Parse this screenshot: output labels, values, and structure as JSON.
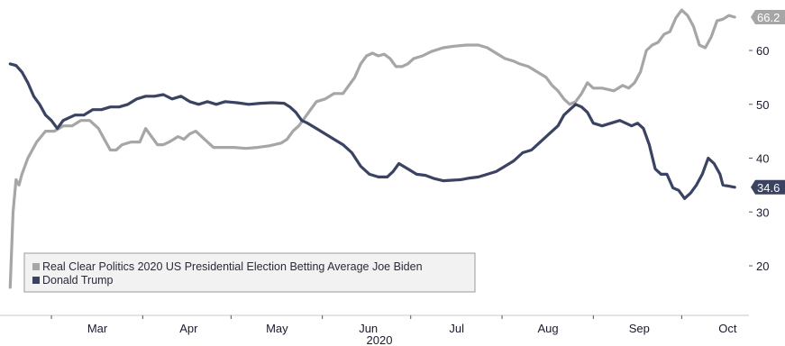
{
  "chart_data": {
    "type": "line",
    "year_label": "2020",
    "x_tick_labels": [
      {
        "label": "Mar",
        "date": "2020-03-01"
      },
      {
        "label": "Apr",
        "date": "2020-04-01"
      },
      {
        "label": "May",
        "date": "2020-05-01"
      },
      {
        "label": "Jun",
        "date": "2020-06-01"
      },
      {
        "label": "Jul",
        "date": "2020-07-01"
      },
      {
        "label": "Aug",
        "date": "2020-08-01"
      },
      {
        "label": "Sep",
        "date": "2020-09-01"
      },
      {
        "label": "Oct",
        "date": "2020-10-01"
      }
    ],
    "y_ticks": [
      20,
      30,
      40,
      50,
      60
    ],
    "ylim": [
      11,
      70
    ],
    "y_axis_position": "right",
    "grid": false,
    "legend_position": "bottom-left",
    "series": [
      {
        "name": "Real Clear Politics 2020 US Presidential Election Betting Average Joe Biden",
        "color": "#a6a6a6",
        "end_label": "66.2",
        "points": [
          [
            "2020-02-16",
            16
          ],
          [
            "2020-02-17",
            30
          ],
          [
            "2020-02-18",
            36
          ],
          [
            "2020-02-19",
            35
          ],
          [
            "2020-02-20",
            37
          ],
          [
            "2020-02-22",
            40
          ],
          [
            "2020-02-25",
            43
          ],
          [
            "2020-02-28",
            45
          ],
          [
            "2020-03-02",
            45
          ],
          [
            "2020-03-05",
            46
          ],
          [
            "2020-03-08",
            46
          ],
          [
            "2020-03-11",
            47
          ],
          [
            "2020-03-14",
            47
          ],
          [
            "2020-03-17",
            45.5
          ],
          [
            "2020-03-19",
            43.5
          ],
          [
            "2020-03-21",
            41.5
          ],
          [
            "2020-03-23",
            41.5
          ],
          [
            "2020-03-25",
            42.5
          ],
          [
            "2020-03-28",
            43
          ],
          [
            "2020-03-31",
            43
          ],
          [
            "2020-04-02",
            45.5
          ],
          [
            "2020-04-04",
            44
          ],
          [
            "2020-04-06",
            42.5
          ],
          [
            "2020-04-08",
            42.5
          ],
          [
            "2020-04-10",
            43
          ],
          [
            "2020-04-13",
            44
          ],
          [
            "2020-04-15",
            43.5
          ],
          [
            "2020-04-17",
            44.5
          ],
          [
            "2020-04-19",
            45
          ],
          [
            "2020-04-21",
            44
          ],
          [
            "2020-04-23",
            43
          ],
          [
            "2020-04-25",
            42
          ],
          [
            "2020-04-28",
            42
          ],
          [
            "2020-05-02",
            42
          ],
          [
            "2020-05-06",
            41.8
          ],
          [
            "2020-05-10",
            42
          ],
          [
            "2020-05-14",
            42.3
          ],
          [
            "2020-05-18",
            42.8
          ],
          [
            "2020-05-20",
            43.5
          ],
          [
            "2020-05-22",
            45
          ],
          [
            "2020-05-24",
            46
          ],
          [
            "2020-05-26",
            47.5
          ],
          [
            "2020-05-28",
            49
          ],
          [
            "2020-05-30",
            50.5
          ],
          [
            "2020-06-02",
            51
          ],
          [
            "2020-06-05",
            52
          ],
          [
            "2020-06-08",
            52
          ],
          [
            "2020-06-10",
            53.5
          ],
          [
            "2020-06-12",
            55
          ],
          [
            "2020-06-14",
            57.5
          ],
          [
            "2020-06-16",
            59
          ],
          [
            "2020-06-18",
            59.5
          ],
          [
            "2020-06-20",
            59
          ],
          [
            "2020-06-22",
            59.3
          ],
          [
            "2020-06-24",
            58.5
          ],
          [
            "2020-06-26",
            57
          ],
          [
            "2020-06-28",
            57
          ],
          [
            "2020-06-30",
            57.5
          ],
          [
            "2020-07-02",
            58.5
          ],
          [
            "2020-07-05",
            59
          ],
          [
            "2020-07-08",
            59.8
          ],
          [
            "2020-07-12",
            60.5
          ],
          [
            "2020-07-16",
            60.8
          ],
          [
            "2020-07-20",
            61
          ],
          [
            "2020-07-24",
            61
          ],
          [
            "2020-07-27",
            60.5
          ],
          [
            "2020-07-30",
            59.5
          ],
          [
            "2020-08-02",
            58.5
          ],
          [
            "2020-08-05",
            58
          ],
          [
            "2020-08-07",
            57.5
          ],
          [
            "2020-08-10",
            57
          ],
          [
            "2020-08-13",
            56
          ],
          [
            "2020-08-16",
            55
          ],
          [
            "2020-08-18",
            53.5
          ],
          [
            "2020-08-20",
            52.5
          ],
          [
            "2020-08-22",
            51
          ],
          [
            "2020-08-24",
            50
          ],
          [
            "2020-08-26",
            50.5
          ],
          [
            "2020-08-28",
            52
          ],
          [
            "2020-08-30",
            54
          ],
          [
            "2020-09-01",
            53
          ],
          [
            "2020-09-04",
            53
          ],
          [
            "2020-09-08",
            52.5
          ],
          [
            "2020-09-11",
            53.5
          ],
          [
            "2020-09-13",
            53
          ],
          [
            "2020-09-15",
            54
          ],
          [
            "2020-09-17",
            56
          ],
          [
            "2020-09-19",
            60
          ],
          [
            "2020-09-21",
            61
          ],
          [
            "2020-09-23",
            61.5
          ],
          [
            "2020-09-25",
            63
          ],
          [
            "2020-09-27",
            63.5
          ],
          [
            "2020-09-29",
            66
          ],
          [
            "2020-10-01",
            67.5
          ],
          [
            "2020-10-03",
            66.5
          ],
          [
            "2020-10-05",
            64.5
          ],
          [
            "2020-10-07",
            61
          ],
          [
            "2020-10-09",
            60.5
          ],
          [
            "2020-10-11",
            62.5
          ],
          [
            "2020-10-13",
            65.5
          ],
          [
            "2020-10-15",
            65.8
          ],
          [
            "2020-10-17",
            66.5
          ],
          [
            "2020-10-19",
            66.2
          ]
        ]
      },
      {
        "name": "Donald Trump",
        "color": "#3b4362",
        "end_label": "34.6",
        "points": [
          [
            "2020-02-16",
            57.5
          ],
          [
            "2020-02-18",
            57.2
          ],
          [
            "2020-02-20",
            56
          ],
          [
            "2020-02-22",
            54
          ],
          [
            "2020-02-24",
            51.5
          ],
          [
            "2020-02-26",
            50
          ],
          [
            "2020-02-28",
            48
          ],
          [
            "2020-03-01",
            47
          ],
          [
            "2020-03-03",
            45.5
          ],
          [
            "2020-03-05",
            47
          ],
          [
            "2020-03-07",
            47.5
          ],
          [
            "2020-03-09",
            48
          ],
          [
            "2020-03-12",
            48
          ],
          [
            "2020-03-15",
            49
          ],
          [
            "2020-03-18",
            49
          ],
          [
            "2020-03-21",
            49.5
          ],
          [
            "2020-03-24",
            49.5
          ],
          [
            "2020-03-27",
            50
          ],
          [
            "2020-03-30",
            51
          ],
          [
            "2020-04-02",
            51.5
          ],
          [
            "2020-04-05",
            51.5
          ],
          [
            "2020-04-08",
            51.8
          ],
          [
            "2020-04-11",
            51
          ],
          [
            "2020-04-14",
            51.5
          ],
          [
            "2020-04-17",
            50.5
          ],
          [
            "2020-04-20",
            50
          ],
          [
            "2020-04-23",
            50.5
          ],
          [
            "2020-04-26",
            50
          ],
          [
            "2020-04-29",
            50.5
          ],
          [
            "2020-05-03",
            50.3
          ],
          [
            "2020-05-07",
            50
          ],
          [
            "2020-05-11",
            50.2
          ],
          [
            "2020-05-15",
            50.3
          ],
          [
            "2020-05-19",
            50.2
          ],
          [
            "2020-05-21",
            49.5
          ],
          [
            "2020-05-23",
            48.5
          ],
          [
            "2020-05-25",
            47
          ],
          [
            "2020-05-27",
            46.5
          ],
          [
            "2020-05-30",
            45.5
          ],
          [
            "2020-06-02",
            44.5
          ],
          [
            "2020-06-05",
            43.5
          ],
          [
            "2020-06-08",
            42.5
          ],
          [
            "2020-06-11",
            41
          ],
          [
            "2020-06-14",
            38.5
          ],
          [
            "2020-06-17",
            37
          ],
          [
            "2020-06-20",
            36.5
          ],
          [
            "2020-06-23",
            36.5
          ],
          [
            "2020-06-25",
            37.5
          ],
          [
            "2020-06-27",
            39
          ],
          [
            "2020-06-30",
            38
          ],
          [
            "2020-07-03",
            37
          ],
          [
            "2020-07-06",
            36.8
          ],
          [
            "2020-07-09",
            36.2
          ],
          [
            "2020-07-12",
            35.8
          ],
          [
            "2020-07-15",
            35.9
          ],
          [
            "2020-07-18",
            36
          ],
          [
            "2020-07-21",
            36.3
          ],
          [
            "2020-07-24",
            36.5
          ],
          [
            "2020-07-27",
            37
          ],
          [
            "2020-07-30",
            37.5
          ],
          [
            "2020-08-02",
            38.5
          ],
          [
            "2020-08-05",
            39.5
          ],
          [
            "2020-08-08",
            41
          ],
          [
            "2020-08-11",
            41.5
          ],
          [
            "2020-08-14",
            43
          ],
          [
            "2020-08-17",
            44.5
          ],
          [
            "2020-08-20",
            46
          ],
          [
            "2020-08-22",
            48
          ],
          [
            "2020-08-24",
            49
          ],
          [
            "2020-08-26",
            50
          ],
          [
            "2020-08-28",
            49.5
          ],
          [
            "2020-08-30",
            48.5
          ],
          [
            "2020-09-01",
            46.5
          ],
          [
            "2020-09-04",
            46
          ],
          [
            "2020-09-07",
            46.5
          ],
          [
            "2020-09-10",
            47
          ],
          [
            "2020-09-12",
            46.5
          ],
          [
            "2020-09-14",
            46
          ],
          [
            "2020-09-16",
            46.5
          ],
          [
            "2020-09-18",
            45.5
          ],
          [
            "2020-09-20",
            42.5
          ],
          [
            "2020-09-22",
            38
          ],
          [
            "2020-09-24",
            37
          ],
          [
            "2020-09-26",
            37
          ],
          [
            "2020-09-28",
            34.5
          ],
          [
            "2020-09-30",
            34
          ],
          [
            "2020-10-02",
            32.5
          ],
          [
            "2020-10-04",
            33.5
          ],
          [
            "2020-10-06",
            35
          ],
          [
            "2020-10-08",
            37
          ],
          [
            "2020-10-10",
            40
          ],
          [
            "2020-10-12",
            39
          ],
          [
            "2020-10-14",
            37
          ],
          [
            "2020-10-15",
            35
          ],
          [
            "2020-10-17",
            34.8
          ],
          [
            "2020-10-19",
            34.6
          ]
        ]
      }
    ]
  }
}
